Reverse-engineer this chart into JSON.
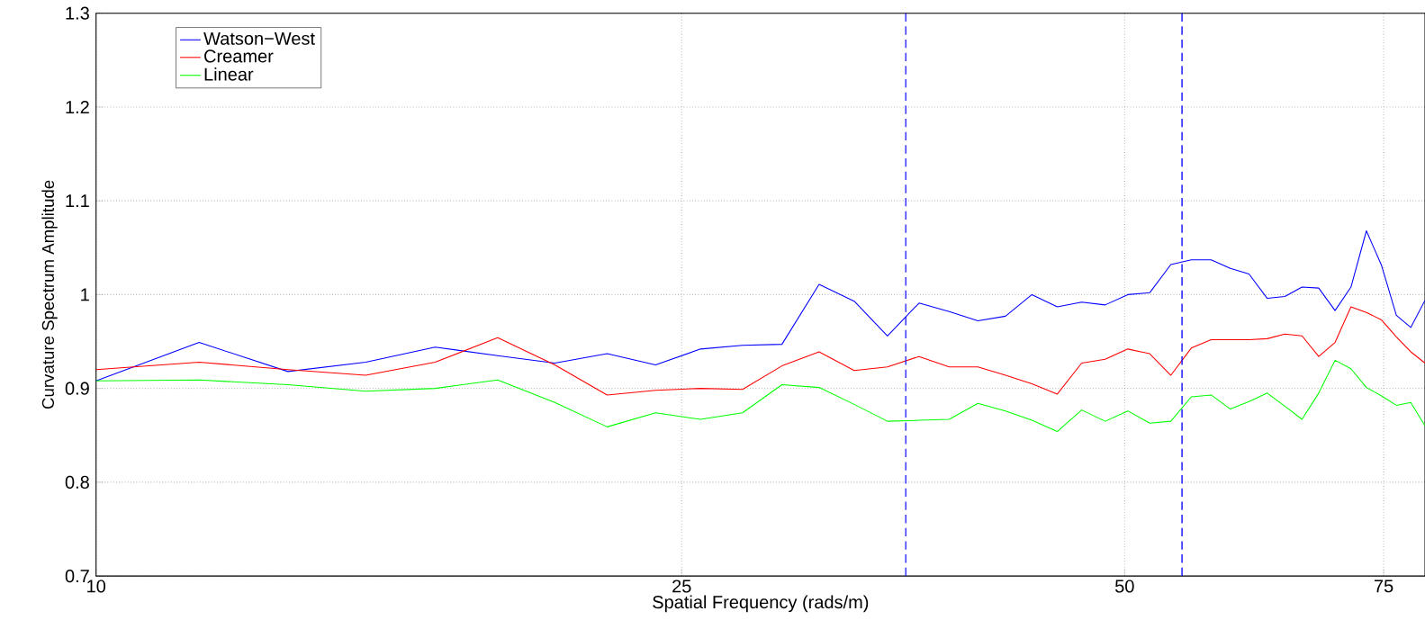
{
  "chart_data": {
    "type": "line",
    "xlabel": "Spatial Frequency (rads/m)",
    "ylabel": "Curvature Spectrum Amplitude",
    "x": [
      10,
      11.75,
      13.5,
      15.25,
      17,
      18.75,
      20.5,
      22.25,
      24,
      25.75,
      27.5,
      29.25,
      31,
      32.75,
      34.5,
      36.25,
      38,
      39.75,
      41.5,
      43.25,
      45,
      46.75,
      48.5,
      50.25,
      52,
      53.75,
      55.5,
      57.25,
      59,
      60.75,
      62.5,
      64.25,
      66,
      67.75,
      69.5,
      71.25,
      73,
      74.75,
      76.5,
      78.25,
      80
    ],
    "series": [
      {
        "name": "Watson−West",
        "color": "#0000ff",
        "values": [
          0.908,
          0.949,
          0.918,
          0.928,
          0.944,
          0.935,
          0.927,
          0.937,
          0.925,
          0.942,
          0.946,
          0.947,
          1.011,
          0.993,
          0.956,
          0.991,
          0.982,
          0.972,
          0.977,
          1.0,
          0.987,
          0.992,
          0.989,
          1.0,
          1.002,
          1.032,
          1.037,
          1.037,
          1.028,
          1.022,
          0.996,
          0.998,
          1.008,
          1.007,
          0.983,
          1.008,
          1.068,
          1.031,
          0.978,
          0.965,
          0.994
        ]
      },
      {
        "name": "Creamer",
        "color": "#ff0000",
        "values": [
          0.92,
          0.928,
          0.92,
          0.914,
          0.928,
          0.954,
          0.925,
          0.893,
          0.898,
          0.9,
          0.899,
          0.924,
          0.939,
          0.919,
          0.923,
          0.934,
          0.923,
          0.923,
          0.914,
          0.905,
          0.894,
          0.927,
          0.931,
          0.942,
          0.937,
          0.914,
          0.943,
          0.952,
          0.952,
          0.952,
          0.953,
          0.958,
          0.956,
          0.934,
          0.949,
          0.987,
          0.981,
          0.973,
          0.955,
          0.939,
          0.927
        ]
      },
      {
        "name": "Linear",
        "color": "#00ff00",
        "values": [
          0.908,
          0.909,
          0.904,
          0.897,
          0.9,
          0.909,
          0.885,
          0.859,
          0.874,
          0.867,
          0.874,
          0.904,
          0.901,
          0.883,
          0.865,
          0.866,
          0.867,
          0.884,
          0.876,
          0.866,
          0.854,
          0.877,
          0.865,
          0.876,
          0.863,
          0.865,
          0.891,
          0.893,
          0.878,
          0.886,
          0.895,
          0.881,
          0.867,
          0.895,
          0.93,
          0.921,
          0.901,
          0.892,
          0.882,
          0.885,
          0.86
        ]
      }
    ],
    "xlim": [
      10,
      80
    ],
    "ylim": [
      0.7,
      1.3
    ],
    "xticks": [
      10,
      25,
      50,
      75
    ],
    "yticks": [
      0.7,
      0.8,
      0.9,
      1,
      1.1,
      1.2,
      1.3
    ],
    "log": "x",
    "grid": true,
    "legend": "top left",
    "marker": "none",
    "line_style": "solid",
    "ref_lines": [
      {
        "axis": "x",
        "value": 35.5,
        "color": "#0000ff",
        "line_style": "dashed"
      },
      {
        "axis": "x",
        "value": 54.7,
        "color": "#0000ff",
        "line_style": "dashed"
      }
    ]
  }
}
